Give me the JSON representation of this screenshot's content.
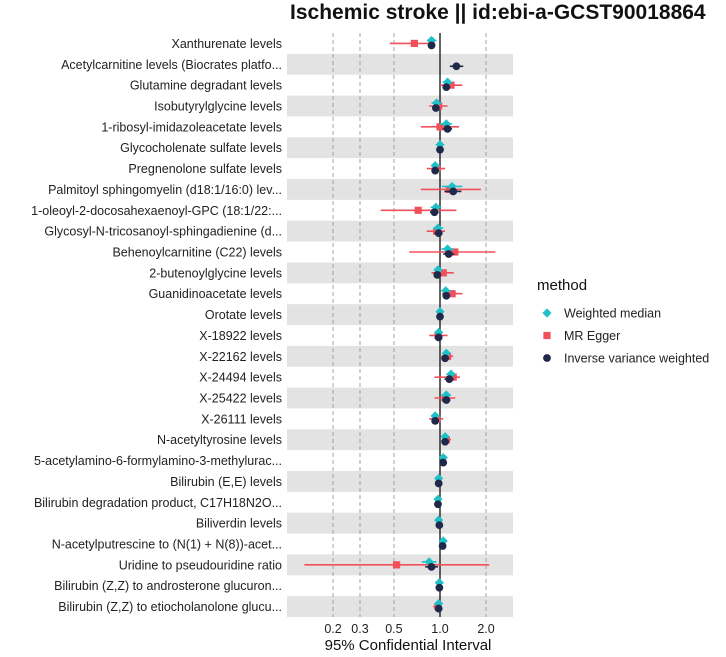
{
  "chart_data": {
    "type": "forest",
    "title": "Ischemic stroke || id:ebi-a-GCST90018864",
    "xlabel": "95% Confidential Interval",
    "x_scale": "log",
    "xlim": [
      0.1,
      3.0
    ],
    "x_ticks": [
      0.2,
      0.3,
      0.5,
      1.0,
      2.0
    ],
    "x_tick_labels": [
      "0.2",
      "0.3",
      "0.5",
      "1.0",
      "2.0"
    ],
    "reference_line": 1.0,
    "legend": {
      "title": "method",
      "position": "right",
      "entries": [
        {
          "name": "Weighted median",
          "shape": "diamond",
          "color": "#20c0c8"
        },
        {
          "name": "MR Egger",
          "shape": "square",
          "color": "#f0505a"
        },
        {
          "name": "Inverse variance weighted",
          "shape": "circle",
          "color": "#1f2a4a"
        }
      ]
    },
    "categories": [
      "Xanthurenate levels",
      "Acetylcarnitine levels (Biocrates platfo...",
      "Glutamine degradant levels",
      "Isobutyrylglycine levels",
      "1-ribosyl-imidazoleacetate levels",
      "Glycocholenate sulfate levels",
      "Pregnenolone sulfate levels",
      "Palmitoyl sphingomyelin (d18:1/16:0) lev...",
      "1-oleoyl-2-docosahexaenoyl-GPC (18:1/22:...",
      "Glycosyl-N-tricosanoyl-sphingadienine (d...",
      "Behenoylcarnitine (C22) levels",
      "2-butenoylglycine levels",
      "Guanidinoacetate levels",
      "Orotate levels",
      "X-18922 levels",
      "X-22162 levels",
      "X-24494 levels",
      "X-25422 levels",
      "X-26111 levels",
      "N-acetyltyrosine levels",
      "5-acetylamino-6-formylamino-3-methylurac...",
      "Bilirubin (E,E) levels",
      "Bilirubin degradation product, C17H18N2O...",
      "Biliverdin levels",
      "N-acetylputrescine to (N(1) + N(8))-acet...",
      "Uridine to pseudouridine ratio",
      "Bilirubin (Z,Z) to androsterone glucuron...",
      "Bilirubin (Z,Z) to etiocholanolone glucu..."
    ],
    "series": [
      {
        "name": "Weighted median",
        "color": "#20c0c8",
        "shape": "diamond",
        "or": [
          0.88,
          null,
          1.12,
          0.95,
          1.1,
          1.0,
          0.93,
          1.2,
          0.94,
          0.97,
          1.12,
          0.97,
          1.09,
          1.0,
          0.98,
          1.1,
          1.18,
          1.1,
          0.93,
          1.08,
          1.05,
          0.98,
          0.97,
          0.98,
          1.05,
          0.85,
          0.99,
          0.98
        ],
        "lower": [
          0.82,
          null,
          1.04,
          0.88,
          1.0,
          0.95,
          0.88,
          1.03,
          0.87,
          0.9,
          1.02,
          0.92,
          1.02,
          0.97,
          0.94,
          1.04,
          1.1,
          1.02,
          0.88,
          1.03,
          1.02,
          0.95,
          0.94,
          0.95,
          1.02,
          0.76,
          0.96,
          0.95
        ],
        "upper": [
          0.95,
          null,
          1.2,
          1.02,
          1.2,
          1.05,
          0.99,
          1.4,
          1.02,
          1.05,
          1.23,
          1.02,
          1.17,
          1.03,
          1.02,
          1.16,
          1.26,
          1.18,
          0.98,
          1.13,
          1.08,
          1.01,
          1.0,
          1.01,
          1.08,
          0.95,
          1.02,
          1.01
        ]
      },
      {
        "name": "MR Egger",
        "color": "#f0505a",
        "shape": "square",
        "or": [
          0.68,
          null,
          1.18,
          0.98,
          1.0,
          null,
          0.95,
          1.15,
          0.72,
          0.95,
          1.25,
          1.05,
          1.2,
          null,
          0.97,
          1.12,
          1.22,
          1.08,
          0.95,
          1.1,
          null,
          null,
          null,
          null,
          null,
          0.52,
          null,
          0.97
        ],
        "lower": [
          0.47,
          null,
          1.0,
          0.85,
          0.75,
          null,
          0.82,
          0.75,
          0.41,
          0.82,
          0.63,
          0.88,
          1.03,
          null,
          0.85,
          1.02,
          0.92,
          0.92,
          0.85,
          1.03,
          null,
          null,
          null,
          null,
          null,
          0.13,
          null,
          0.9
        ],
        "upper": [
          0.93,
          null,
          1.4,
          1.12,
          1.33,
          null,
          1.08,
          1.85,
          1.28,
          1.08,
          2.3,
          1.23,
          1.4,
          null,
          1.12,
          1.22,
          1.35,
          1.26,
          1.05,
          1.18,
          null,
          null,
          null,
          null,
          null,
          2.1,
          null,
          1.03
        ]
      },
      {
        "name": "Inverse variance weighted",
        "color": "#1f2a4a",
        "shape": "circle",
        "or": [
          0.88,
          1.28,
          1.1,
          0.94,
          1.12,
          1.0,
          0.93,
          1.22,
          0.92,
          0.98,
          1.14,
          0.96,
          1.1,
          1.0,
          0.98,
          1.08,
          1.15,
          1.1,
          0.93,
          1.08,
          1.05,
          0.98,
          0.97,
          0.99,
          1.04,
          0.88,
          0.99,
          0.98
        ],
        "lower": [
          0.84,
          1.16,
          1.04,
          0.89,
          1.04,
          0.96,
          0.89,
          1.07,
          0.86,
          0.92,
          1.05,
          0.92,
          1.04,
          0.97,
          0.94,
          1.03,
          1.07,
          1.03,
          0.89,
          1.04,
          1.02,
          0.95,
          0.94,
          0.96,
          1.01,
          0.8,
          0.96,
          0.95
        ],
        "upper": [
          0.92,
          1.42,
          1.16,
          0.99,
          1.2,
          1.04,
          0.97,
          1.38,
          0.98,
          1.04,
          1.24,
          1.0,
          1.16,
          1.03,
          1.02,
          1.13,
          1.23,
          1.17,
          0.97,
          1.12,
          1.08,
          1.01,
          1.0,
          1.02,
          1.07,
          0.97,
          1.02,
          1.01
        ]
      }
    ]
  }
}
